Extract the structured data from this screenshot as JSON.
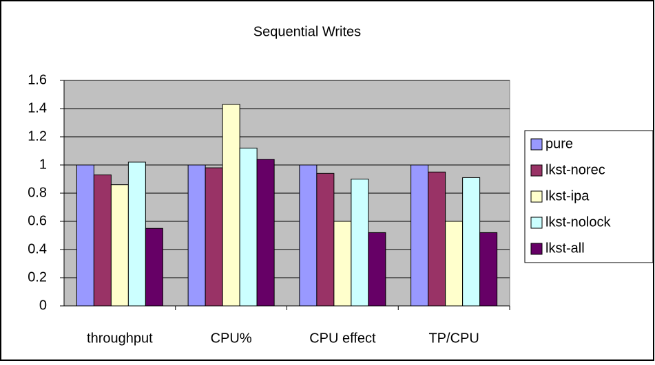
{
  "chart_data": {
    "type": "bar",
    "title": "Sequential Writes",
    "categories": [
      "throughput",
      "CPU%",
      "CPU effect",
      "TP/CPU"
    ],
    "series": [
      {
        "name": "pure",
        "color": "#9999ff",
        "values": [
          1.0,
          1.0,
          1.0,
          1.0
        ]
      },
      {
        "name": "lkst-norec",
        "color": "#993366",
        "values": [
          0.93,
          0.98,
          0.94,
          0.95
        ]
      },
      {
        "name": "lkst-ipa",
        "color": "#ffffcc",
        "values": [
          0.86,
          1.43,
          0.6,
          0.6
        ]
      },
      {
        "name": "lkst-nolock",
        "color": "#ccffff",
        "values": [
          1.02,
          1.12,
          0.9,
          0.91
        ]
      },
      {
        "name": "lkst-all",
        "color": "#660066",
        "values": [
          0.55,
          1.04,
          0.52,
          0.52
        ]
      }
    ],
    "ylim": [
      0,
      1.6
    ],
    "yticks": [
      0,
      0.2,
      0.4,
      0.6,
      0.8,
      1,
      1.2,
      1.4,
      1.6
    ],
    "grid": true,
    "legend": "right",
    "plot_background": "#c0c0c0"
  }
}
